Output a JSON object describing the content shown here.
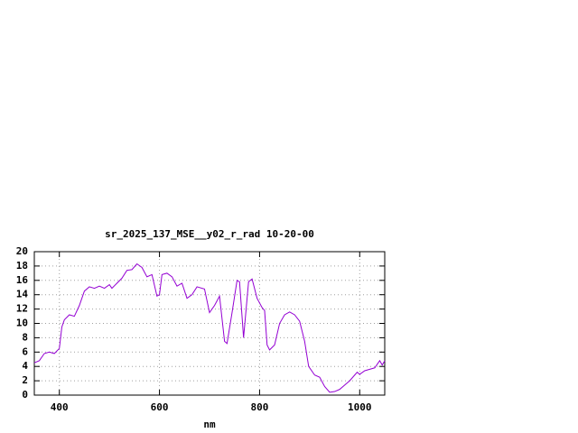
{
  "chart_data": {
    "type": "line",
    "title": "sr_2025_137_MSE__y02_r_rad 10-20-00",
    "x_label": "nm",
    "x": [
      350,
      360,
      370,
      380,
      390,
      400,
      405,
      410,
      420,
      430,
      440,
      450,
      460,
      470,
      480,
      490,
      500,
      505,
      515,
      525,
      535,
      545,
      555,
      565,
      575,
      585,
      595,
      600,
      605,
      615,
      625,
      635,
      645,
      655,
      665,
      675,
      690,
      700,
      710,
      720,
      730,
      735,
      745,
      755,
      760,
      768,
      778,
      785,
      795,
      805,
      810,
      815,
      820,
      830,
      840,
      850,
      860,
      870,
      880,
      890,
      898,
      910,
      920,
      930,
      940,
      950,
      960,
      970,
      980,
      990,
      995,
      1000,
      1010,
      1020,
      1030,
      1040,
      1045,
      1050
    ],
    "series": [
      {
        "name": "sr_2025_137_MSE__y02_r_rad 10-20-00",
        "color": "#9400d3",
        "values": [
          4.5,
          4.8,
          5.8,
          6.0,
          5.8,
          6.5,
          9.5,
          10.5,
          11.2,
          11.0,
          12.5,
          14.5,
          15.1,
          14.9,
          15.2,
          14.9,
          15.4,
          14.9,
          15.6,
          16.3,
          17.4,
          17.5,
          18.3,
          17.8,
          16.5,
          16.8,
          13.8,
          14.0,
          16.8,
          17.0,
          16.5,
          15.2,
          15.6,
          13.5,
          14.0,
          15.1,
          14.8,
          11.5,
          12.5,
          13.8,
          7.5,
          7.2,
          11.5,
          16.0,
          15.8,
          8.0,
          15.8,
          16.2,
          13.5,
          12.2,
          11.8,
          7.0,
          6.3,
          7.0,
          10.0,
          11.2,
          11.6,
          11.2,
          10.3,
          7.5,
          4.0,
          2.8,
          2.5,
          1.2,
          0.4,
          0.5,
          0.8,
          1.4,
          2.0,
          2.8,
          3.2,
          2.9,
          3.4,
          3.6,
          3.8,
          4.8,
          4.2,
          4.8
        ]
      }
    ],
    "xlim": [
      350,
      1050
    ],
    "xticks": [
      400,
      600,
      800,
      1000
    ],
    "ylim": [
      0,
      20
    ],
    "yticks": [
      0,
      2,
      4,
      6,
      8,
      10,
      12,
      14,
      16,
      18,
      20
    ],
    "grid": true
  }
}
